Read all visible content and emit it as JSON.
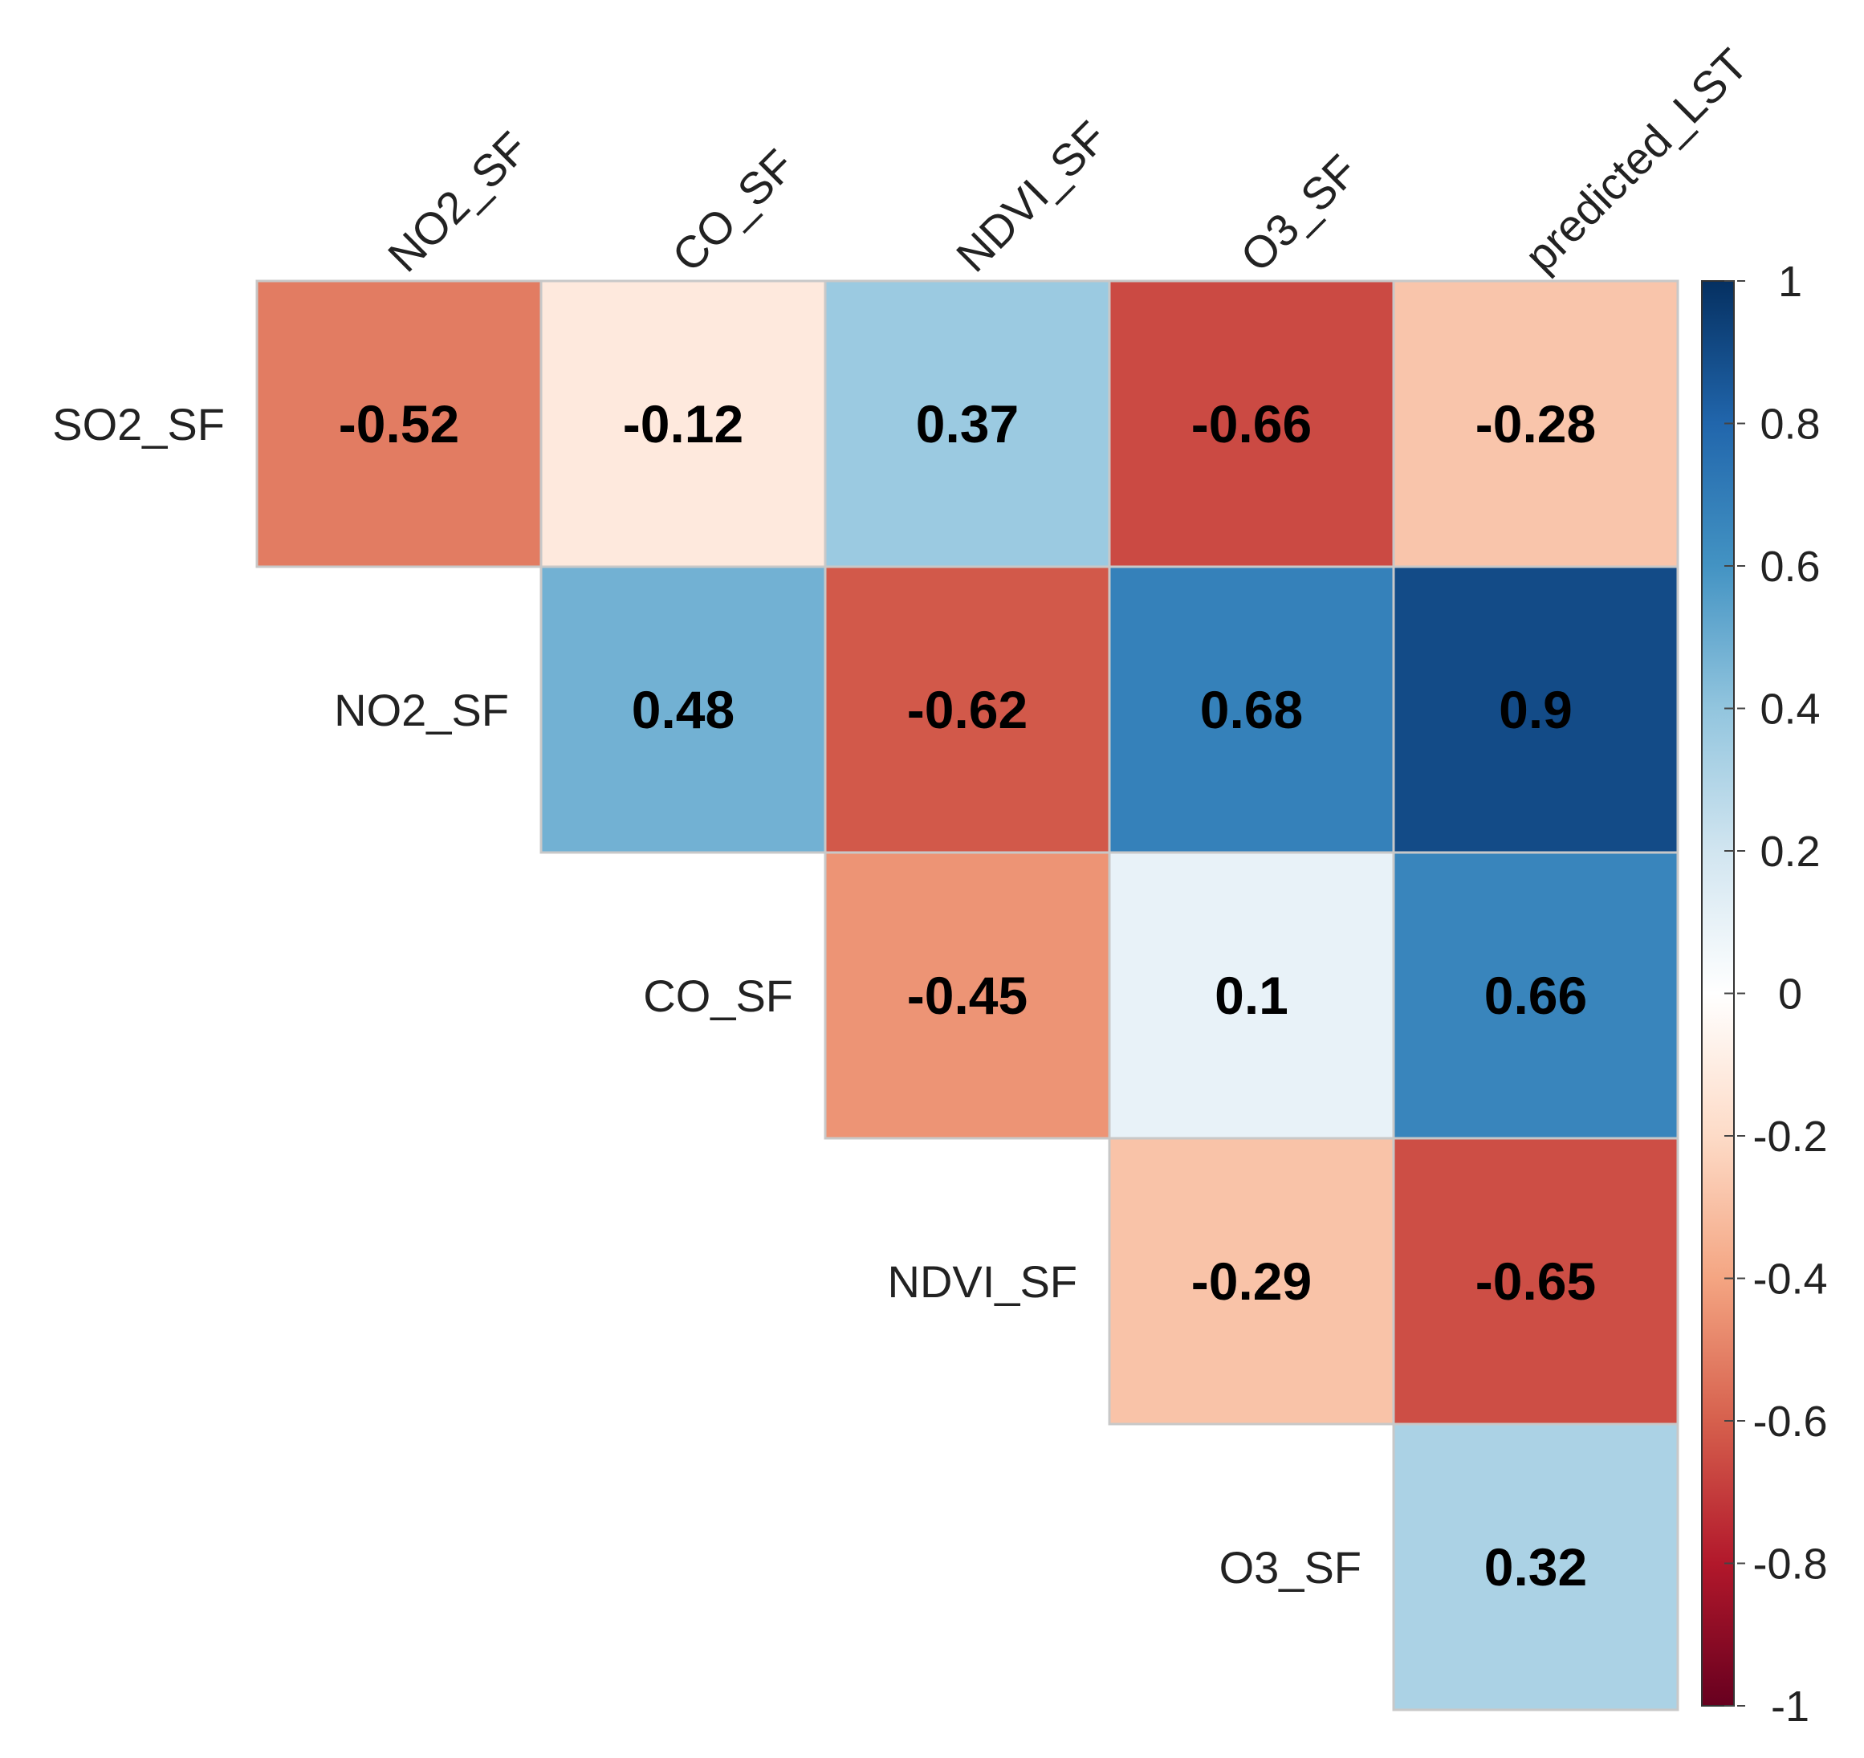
{
  "chart_data": {
    "type": "heatmap",
    "title": "",
    "layout": "upper-triangle",
    "columns": [
      "NO2_SF",
      "CO_SF",
      "NDVI_SF",
      "O3_SF",
      "predicted_LST"
    ],
    "rows": [
      "SO2_SF",
      "NO2_SF",
      "CO_SF",
      "NDVI_SF",
      "O3_SF"
    ],
    "matrix": [
      [
        -0.52,
        -0.12,
        0.37,
        -0.66,
        -0.28
      ],
      [
        null,
        0.48,
        -0.62,
        0.68,
        0.9
      ],
      [
        null,
        null,
        -0.45,
        0.1,
        0.66
      ],
      [
        null,
        null,
        null,
        -0.29,
        -0.65
      ],
      [
        null,
        null,
        null,
        null,
        0.32
      ]
    ],
    "value_labels": [
      [
        "-0.52",
        "-0.12",
        "0.37",
        "-0.66",
        "-0.28"
      ],
      [
        null,
        "0.48",
        "-0.62",
        "0.68",
        "0.9"
      ],
      [
        null,
        null,
        "-0.45",
        "0.1",
        "0.66"
      ],
      [
        null,
        null,
        null,
        "-0.29",
        "-0.65"
      ],
      [
        null,
        null,
        null,
        null,
        "0.32"
      ]
    ],
    "colorbar": {
      "range": [
        -1,
        1
      ],
      "ticks": [
        1,
        0.8,
        0.6,
        0.4,
        0.2,
        0,
        -0.2,
        -0.4,
        -0.6,
        -0.8,
        -1
      ],
      "tick_labels": [
        "1",
        "0.8",
        "0.6",
        "0.4",
        "0.2",
        "0",
        "-0.2",
        "-0.4",
        "-0.6",
        "-0.8",
        "-1"
      ],
      "colors_low_to_high": [
        "#67001F",
        "#B2182B",
        "#D6604D",
        "#F4A582",
        "#FDDBC7",
        "#FFFFFF",
        "#D1E5F0",
        "#92C5DE",
        "#4393C3",
        "#2166AC",
        "#053061"
      ]
    },
    "grid_color": "#c8c8c8"
  }
}
